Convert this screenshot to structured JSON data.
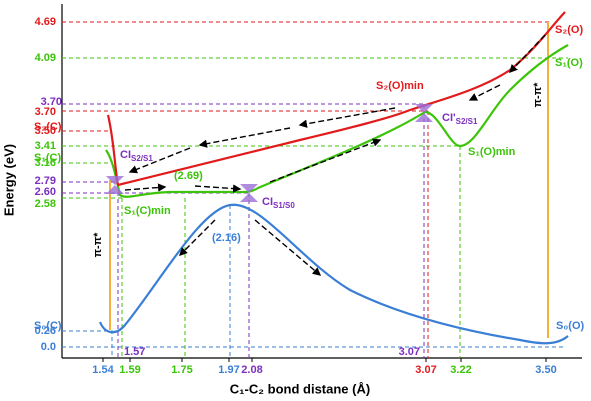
{
  "y_axis": {
    "title": "Energy (eV)",
    "labels": [
      "4.69",
      "4.09",
      "3.70",
      "3.70",
      "3.50",
      "3.41",
      "3.16",
      "2.79",
      "2.60",
      "2.58",
      "0.26",
      "0.0"
    ]
  },
  "x_axis": {
    "title": "C₁-C₂ bond distane (Å)",
    "labels": [
      "1.54",
      "1.59",
      "1.75",
      "1.97",
      "2.08",
      "3.07",
      "3.22",
      "3.50"
    ],
    "inner_labels": [
      "1.57",
      "3.07"
    ]
  },
  "curve_labels": [
    {
      "text": "S₂(O)"
    },
    {
      "text": "S₁(O)"
    },
    {
      "text": "S₂(O)min"
    },
    {
      "text": "CI'",
      "sub": "S2/S1"
    },
    {
      "text": "S₂(C)"
    },
    {
      "text": "S₁(C)"
    },
    {
      "text": "CI",
      "sub": "S2/S1"
    },
    {
      "text": "(2.69)"
    },
    {
      "text": "S₁(O)min"
    },
    {
      "text": "S₁(C)min"
    },
    {
      "text": "CI",
      "sub": "S1/S0"
    },
    {
      "text": "(2.16)"
    },
    {
      "text": "S₀(C)"
    },
    {
      "text": "S₀(O)"
    }
  ],
  "excitation_labels": [
    "π-π*",
    "π-π*"
  ]
}
